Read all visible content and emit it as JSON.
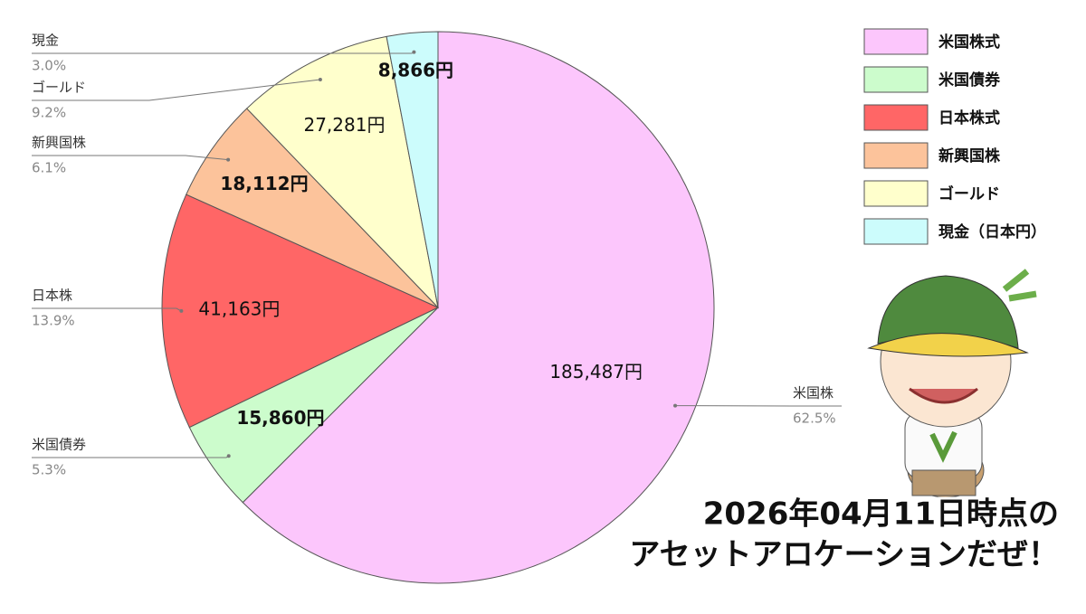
{
  "chart_data": {
    "type": "pie",
    "categories": [
      "米国株式",
      "米国債券",
      "日本株式",
      "新興国株",
      "ゴールド",
      "現金（日本円）"
    ],
    "values": [
      185487,
      15860,
      41163,
      18112,
      27281,
      8866
    ],
    "value_labels": [
      "185,487円",
      "15,860円",
      "41,163円",
      "18,112円",
      "27,281円",
      "8,866円"
    ],
    "colors": [
      "#fcc6fc",
      "#ccfccc",
      "#ff6666",
      "#fcc39b",
      "#ffffcc",
      "#ccfcfc"
    ],
    "label_names": [
      "米国株",
      "米国債券",
      "日本株",
      "新興国株",
      "ゴールド",
      "現金"
    ],
    "percents": [
      62.5,
      5.3,
      13.9,
      6.1,
      9.2,
      3.0
    ],
    "percent_labels": [
      "62.5%",
      "5.3%",
      "13.9%",
      "6.1%",
      "9.2%",
      "3.0%"
    ],
    "legend": "top-right",
    "annotation": [
      "2026年04月11日時点の",
      "アセットアロケーションだぜ！"
    ]
  }
}
